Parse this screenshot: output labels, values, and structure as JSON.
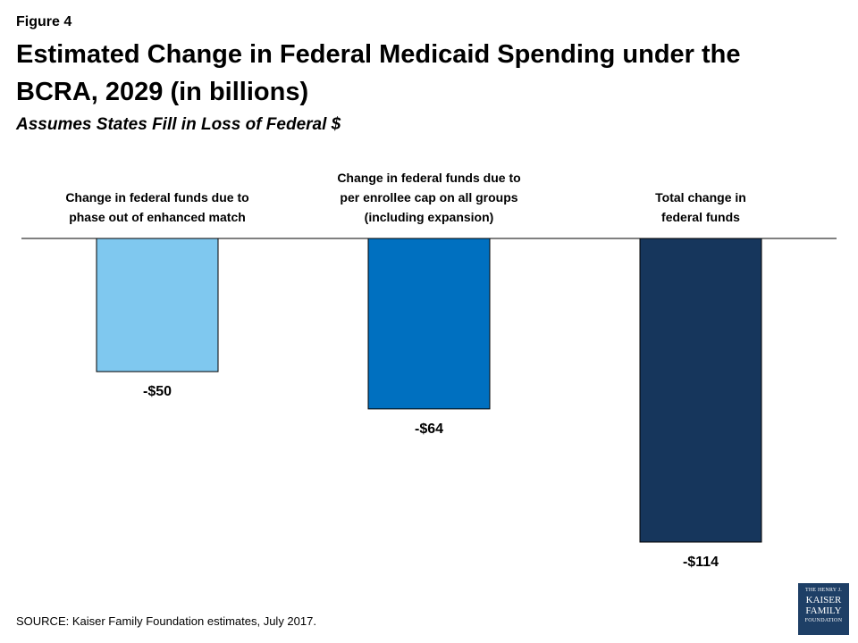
{
  "figure_label": "Figure 4",
  "title": "Estimated Change in Federal Medicaid Spending under the BCRA, 2029 (in billions)",
  "subtitle": "Assumes States Fill in Loss of Federal $",
  "source": "SOURCE: Kaiser Family Foundation estimates, July 2017.",
  "logo": {
    "line1": "THE HENRY J.",
    "line2": "KAISER",
    "line3": "FAMILY",
    "line4": "FOUNDATION"
  },
  "chart_data": {
    "type": "bar",
    "categories": [
      [
        "Change in federal funds due to",
        "phase out of enhanced match"
      ],
      [
        "Change in federal funds due to",
        "per enrollee cap on all groups",
        "(including expansion)"
      ],
      [
        "Total change in",
        "federal funds"
      ]
    ],
    "values": [
      -50,
      -64,
      -114
    ],
    "value_labels": [
      "-$50",
      "-$64",
      "-$114"
    ],
    "colors": [
      "#7fc8ef",
      "#0070c0",
      "#16365c"
    ],
    "ylim": [
      -114,
      0
    ],
    "grid": false,
    "legend": "none"
  }
}
